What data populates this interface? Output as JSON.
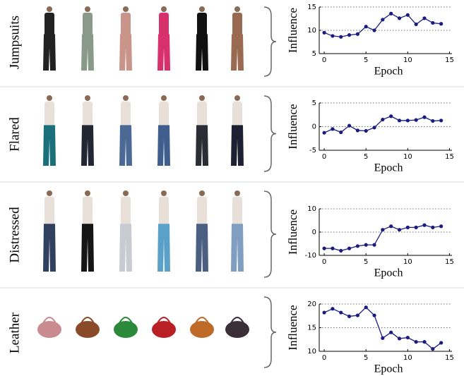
{
  "chart_data": [
    {
      "type": "line",
      "title": "Jumpsuits",
      "xlabel": "Epoch",
      "ylabel": "Influence",
      "color": "#1a1a80",
      "grid": true,
      "x": [
        0,
        1,
        2,
        3,
        4,
        5,
        6,
        7,
        8,
        9,
        10,
        11,
        12,
        13,
        14
      ],
      "values": [
        9.5,
        8.8,
        8.6,
        9.0,
        9.2,
        10.8,
        10.0,
        12.3,
        13.6,
        12.6,
        13.3,
        11.3,
        12.6,
        11.6,
        11.4
      ],
      "xlim": [
        -0.6,
        15.3
      ],
      "xticks": [
        0,
        5,
        10,
        15
      ],
      "ylim": [
        5,
        15
      ],
      "yticks": [
        5,
        10,
        15
      ]
    },
    {
      "type": "line",
      "title": "Flared",
      "xlabel": "Epoch",
      "ylabel": "Influence",
      "color": "#1a1a80",
      "grid": true,
      "x": [
        0,
        1,
        2,
        3,
        4,
        5,
        6,
        7,
        8,
        9,
        10,
        11,
        12,
        13,
        14
      ],
      "values": [
        -1.3,
        -0.5,
        -1.2,
        0.2,
        -0.8,
        -0.9,
        -0.2,
        1.5,
        2.2,
        1.3,
        1.3,
        1.4,
        2.0,
        1.2,
        1.3
      ],
      "xlim": [
        -0.6,
        15.3
      ],
      "xticks": [
        0,
        5,
        10,
        15
      ],
      "ylim": [
        -5,
        5
      ],
      "yticks": [
        -5,
        0,
        5
      ]
    },
    {
      "type": "line",
      "title": "Distressed",
      "xlabel": "Epoch",
      "ylabel": "Influence",
      "color": "#1a1a80",
      "grid": true,
      "x": [
        0,
        1,
        2,
        3,
        4,
        5,
        6,
        7,
        8,
        9,
        10,
        11,
        12,
        13,
        14
      ],
      "values": [
        -7,
        -7,
        -8,
        -7,
        -6,
        -5.5,
        -5.5,
        1,
        2.5,
        1,
        2,
        2,
        3,
        2,
        2.5
      ],
      "xlim": [
        -0.6,
        15.3
      ],
      "xticks": [
        0,
        5,
        10,
        15
      ],
      "ylim": [
        -10,
        10
      ],
      "yticks": [
        -10,
        0,
        10
      ]
    },
    {
      "type": "line",
      "title": "Leather",
      "xlabel": "Epoch",
      "ylabel": "Influence",
      "color": "#1a1a80",
      "grid": true,
      "x": [
        0,
        1,
        2,
        3,
        4,
        5,
        6,
        7,
        8,
        9,
        10,
        11,
        12,
        13,
        14
      ],
      "values": [
        18.2,
        19,
        18.2,
        17.4,
        17.6,
        19.3,
        17.6,
        12.8,
        14,
        12.7,
        12.9,
        12,
        12,
        10.5,
        11.8
      ],
      "xlim": [
        -0.6,
        15.3
      ],
      "xticks": [
        0,
        5,
        10,
        15
      ],
      "ylim": [
        10,
        20
      ],
      "yticks": [
        10,
        15,
        20
      ]
    }
  ]
}
